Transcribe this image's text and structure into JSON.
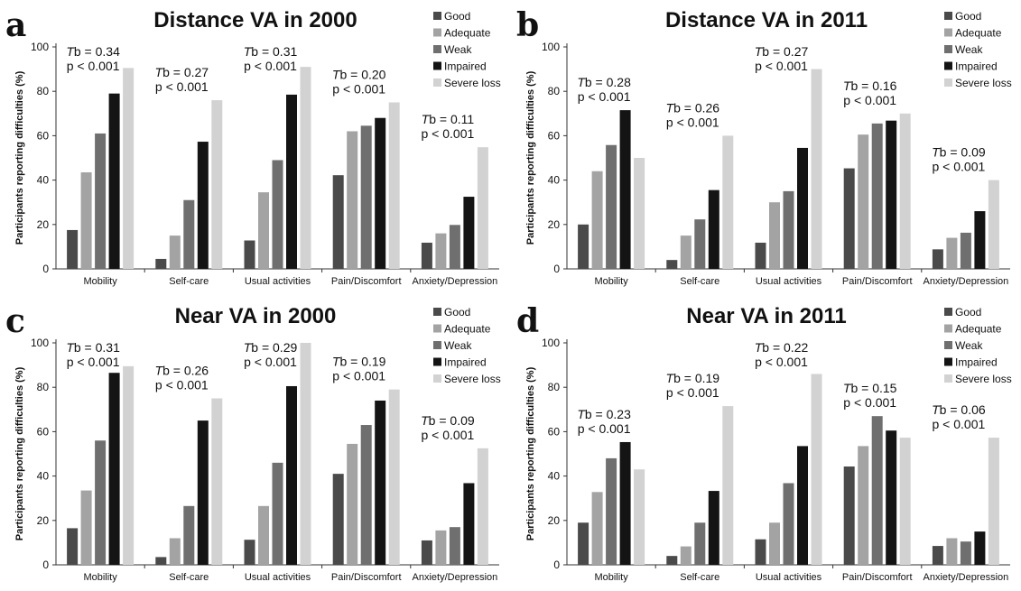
{
  "figure": {
    "colors": {
      "Good": "#4a4a4a",
      "Adequate": "#a3a3a3",
      "Weak": "#6f6f6f",
      "Impaired": "#141414",
      "Severe loss": "#d2d2d2"
    }
  },
  "chart_data": [
    {
      "panel_letter": "a",
      "title": "Distance VA in 2000",
      "type": "bar",
      "ylabel": "Participants reporting difficulties (%)",
      "ylim": [
        0,
        100
      ],
      "yticks": [
        "0",
        "20",
        "40",
        "60",
        "80",
        "100"
      ],
      "categories": [
        "Mobility",
        "Self-care",
        "Usual activities",
        "Pain/Discomfort",
        "Anxiety/Depression"
      ],
      "series": [
        {
          "name": "Good",
          "values": [
            17.5,
            4.5,
            12.8,
            42.2,
            11.8
          ]
        },
        {
          "name": "Adequate",
          "values": [
            43.5,
            15.0,
            34.5,
            62.0,
            16.0
          ]
        },
        {
          "name": "Weak",
          "values": [
            61.0,
            31.0,
            49.0,
            64.5,
            19.8
          ]
        },
        {
          "name": "Impaired",
          "values": [
            79.0,
            57.3,
            78.5,
            68.0,
            32.5
          ]
        },
        {
          "name": "Severe loss",
          "values": [
            90.5,
            76.0,
            91.0,
            75.0,
            54.8
          ]
        }
      ],
      "annotations": [
        {
          "tb": "b = 0.34",
          "p": "p < 0.001"
        },
        {
          "tb": "b = 0.27",
          "p": "p < 0.001"
        },
        {
          "tb": "b = 0.31",
          "p": "p < 0.001"
        },
        {
          "tb": "b = 0.20",
          "p": "p < 0.001"
        },
        {
          "tb": "b = 0.11",
          "p": "p < 0.001"
        }
      ],
      "legend_position": "top-right"
    },
    {
      "panel_letter": "b",
      "title": "Distance VA in 2011",
      "type": "bar",
      "ylabel": "Participants reporting difficulties (%)",
      "ylim": [
        0,
        100
      ],
      "yticks": [
        "0",
        "20",
        "40",
        "60",
        "80",
        "100"
      ],
      "categories": [
        "Mobility",
        "Self-care",
        "Usual activities",
        "Pain/Discomfort",
        "Anxiety/Depression"
      ],
      "series": [
        {
          "name": "Good",
          "values": [
            20.0,
            4.0,
            11.8,
            45.3,
            8.8
          ]
        },
        {
          "name": "Adequate",
          "values": [
            44.0,
            15.0,
            30.0,
            60.5,
            14.0
          ]
        },
        {
          "name": "Weak",
          "values": [
            55.8,
            22.3,
            35.0,
            65.5,
            16.3
          ]
        },
        {
          "name": "Impaired",
          "values": [
            71.5,
            35.5,
            54.5,
            66.8,
            26.0
          ]
        },
        {
          "name": "Severe loss",
          "values": [
            50.0,
            60.0,
            90.0,
            70.0,
            40.0
          ]
        }
      ],
      "annotations": [
        {
          "tb": "b = 0.28",
          "p": "p < 0.001"
        },
        {
          "tb": "b = 0.26",
          "p": "p < 0.001"
        },
        {
          "tb": "b = 0.27",
          "p": "p < 0.001"
        },
        {
          "tb": "b = 0.16",
          "p": "p < 0.001"
        },
        {
          "tb": "b = 0.09",
          "p": "p < 0.001"
        }
      ],
      "legend_position": "top-right"
    },
    {
      "panel_letter": "c",
      "title": "Near VA in 2000",
      "type": "bar",
      "ylabel": "Participants reporting difficulties (%)",
      "ylim": [
        0,
        100
      ],
      "yticks": [
        "0",
        "20",
        "40",
        "60",
        "80",
        "100"
      ],
      "categories": [
        "Mobility",
        "Self-care",
        "Usual activities",
        "Pain/Discomfort",
        "Anxiety/Depression"
      ],
      "series": [
        {
          "name": "Good",
          "values": [
            16.5,
            3.5,
            11.3,
            41.0,
            11.0
          ]
        },
        {
          "name": "Adequate",
          "values": [
            33.5,
            12.0,
            26.5,
            54.5,
            15.5
          ]
        },
        {
          "name": "Weak",
          "values": [
            56.0,
            26.5,
            46.0,
            63.0,
            17.0
          ]
        },
        {
          "name": "Impaired",
          "values": [
            86.5,
            65.0,
            80.5,
            74.0,
            36.8
          ]
        },
        {
          "name": "Severe loss",
          "values": [
            89.5,
            75.0,
            100.0,
            79.0,
            52.5
          ]
        }
      ],
      "annotations": [
        {
          "tb": "b = 0.31",
          "p": "p < 0.001"
        },
        {
          "tb": "b = 0.26",
          "p": "p < 0.001"
        },
        {
          "tb": "b = 0.29",
          "p": "p < 0.001"
        },
        {
          "tb": "b = 0.19",
          "p": "p < 0.001"
        },
        {
          "tb": "b = 0.09",
          "p": "p < 0.001"
        }
      ],
      "legend_position": "top-right"
    },
    {
      "panel_letter": "d",
      "title": "Near VA in 2011",
      "type": "bar",
      "ylabel": "Participants reporting difficulties (%)",
      "ylim": [
        0,
        100
      ],
      "yticks": [
        "0",
        "20",
        "40",
        "60",
        "80",
        "100"
      ],
      "categories": [
        "Mobility",
        "Self-care",
        "Usual activities",
        "Pain/Discomfort",
        "Anxiety/Depression"
      ],
      "series": [
        {
          "name": "Good",
          "values": [
            19.0,
            4.0,
            11.5,
            44.3,
            8.5
          ]
        },
        {
          "name": "Adequate",
          "values": [
            32.8,
            8.3,
            19.0,
            53.5,
            12.0
          ]
        },
        {
          "name": "Weak",
          "values": [
            48.0,
            19.0,
            36.8,
            67.0,
            10.5
          ]
        },
        {
          "name": "Impaired",
          "values": [
            55.3,
            33.3,
            53.5,
            60.5,
            15.0
          ]
        },
        {
          "name": "Severe loss",
          "values": [
            43.0,
            71.5,
            86.0,
            57.3,
            57.3
          ]
        }
      ],
      "annotations": [
        {
          "tb": "b = 0.23",
          "p": "p < 0.001"
        },
        {
          "tb": "b = 0.19",
          "p": "p < 0.001"
        },
        {
          "tb": "b = 0.22",
          "p": "p < 0.001"
        },
        {
          "tb": "b = 0.15",
          "p": "p < 0.001"
        },
        {
          "tb": "b = 0.06",
          "p": "p < 0.001"
        }
      ],
      "legend_position": "top-right"
    }
  ]
}
